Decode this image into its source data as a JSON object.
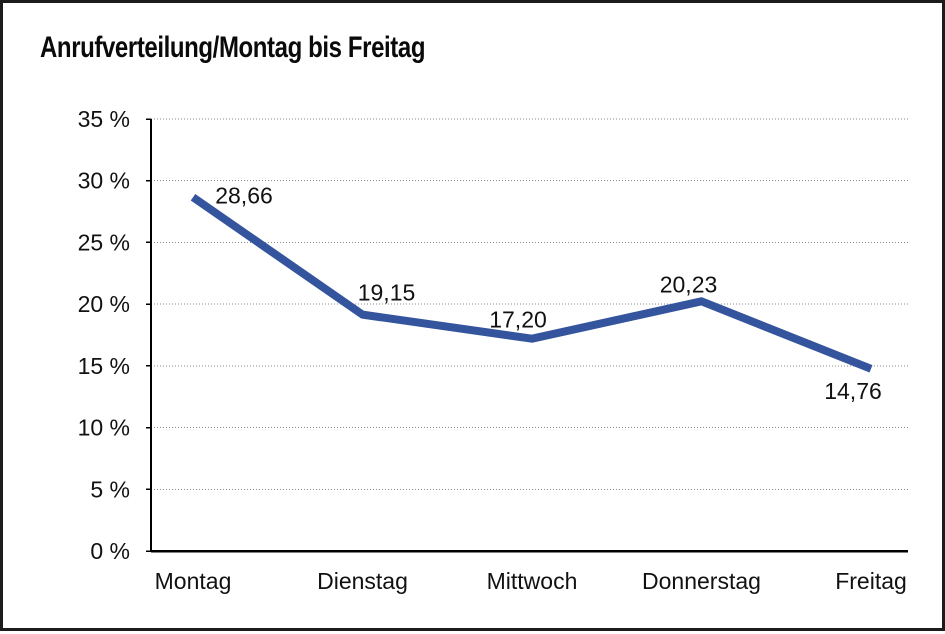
{
  "window": {
    "background": "#ffffff",
    "border_color": "#1c1c1c"
  },
  "header": {
    "title": "Anrufverteilung/Montag bis Freitag"
  },
  "chart_data": {
    "type": "line",
    "title": "Anrufverteilung/Montag bis Freitag",
    "categories": [
      "Montag",
      "Dienstag",
      "Mittwoch",
      "Donnerstag",
      "Freitag"
    ],
    "values": [
      28.66,
      19.15,
      17.2,
      20.23,
      14.76
    ],
    "value_labels": [
      "28,66",
      "19,15",
      "17,20",
      "20,23",
      "14,76"
    ],
    "xlabel": "",
    "ylabel": "",
    "ylim": [
      0,
      35
    ],
    "ytick_step": 5,
    "ytick_labels": [
      "0 %",
      "5 %",
      "10 %",
      "15 %",
      "20 %",
      "25 %",
      "30 %",
      "35 %"
    ],
    "grid": "horizontal-dotted",
    "legend": "none",
    "colors": {
      "line": "#34549E",
      "text": "#111111",
      "grid": "#8a8a8a",
      "axis": "#000000"
    }
  }
}
